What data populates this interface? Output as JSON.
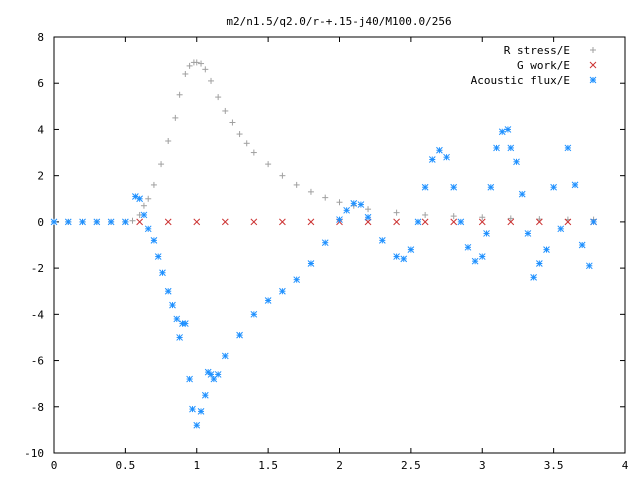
{
  "chart_data": {
    "type": "scatter",
    "title": "m2/n1.5/q2.0/r-+.15-j40/M100.0/256",
    "xlabel": "",
    "ylabel": "",
    "xlim": [
      0,
      4
    ],
    "ylim": [
      -10,
      8
    ],
    "xticks": [
      "0",
      "0.5",
      "1",
      "1.5",
      "2",
      "2.5",
      "3",
      "3.5",
      "4"
    ],
    "yticks": [
      "8",
      "6",
      "4",
      "2",
      "0",
      "-2",
      "-4",
      "-6",
      "-8",
      "-10"
    ],
    "grid": false,
    "legend_position": "top-right",
    "series": [
      {
        "name": "R stress/E",
        "marker": "plus",
        "color": "#a0a0a0",
        "x": [
          0.0,
          0.1,
          0.2,
          0.3,
          0.4,
          0.5,
          0.55,
          0.6,
          0.63,
          0.66,
          0.7,
          0.75,
          0.8,
          0.85,
          0.88,
          0.92,
          0.95,
          0.98,
          1.0,
          1.03,
          1.06,
          1.1,
          1.15,
          1.2,
          1.25,
          1.3,
          1.35,
          1.4,
          1.5,
          1.6,
          1.7,
          1.8,
          1.9,
          2.0,
          2.1,
          2.2,
          2.4,
          2.6,
          2.8,
          3.0,
          3.2,
          3.4,
          3.6,
          3.78
        ],
        "y": [
          0,
          0,
          0,
          0,
          0,
          0,
          0.05,
          0.3,
          0.7,
          1.0,
          1.6,
          2.5,
          3.5,
          4.5,
          5.5,
          6.4,
          6.75,
          6.9,
          6.9,
          6.85,
          6.6,
          6.1,
          5.4,
          4.8,
          4.3,
          3.8,
          3.4,
          3.0,
          2.5,
          2.0,
          1.6,
          1.3,
          1.05,
          0.85,
          0.7,
          0.55,
          0.4,
          0.3,
          0.25,
          0.2,
          0.15,
          0.12,
          0.1,
          0.1
        ]
      },
      {
        "name": "G work/E",
        "marker": "cross",
        "color": "#cc3333",
        "x": [
          0.6,
          0.8,
          1.0,
          1.2,
          1.4,
          1.6,
          1.8,
          2.0,
          2.2,
          2.4,
          2.6,
          2.8,
          3.0,
          3.2,
          3.4,
          3.6,
          3.78
        ],
        "y": [
          0,
          0,
          0,
          0,
          0,
          0,
          0,
          0,
          0,
          0,
          0,
          0,
          0,
          0,
          0,
          0,
          0
        ]
      },
      {
        "name": "Acoustic flux/E",
        "marker": "star",
        "color": "#1e90ff",
        "x": [
          0.0,
          0.1,
          0.2,
          0.3,
          0.4,
          0.5,
          0.57,
          0.6,
          0.63,
          0.66,
          0.7,
          0.73,
          0.76,
          0.8,
          0.83,
          0.86,
          0.88,
          0.9,
          0.92,
          0.95,
          0.97,
          1.0,
          1.03,
          1.06,
          1.08,
          1.1,
          1.12,
          1.15,
          1.2,
          1.3,
          1.4,
          1.5,
          1.6,
          1.7,
          1.8,
          1.9,
          2.0,
          2.05,
          2.1,
          2.15,
          2.2,
          2.3,
          2.4,
          2.45,
          2.5,
          2.55,
          2.6,
          2.65,
          2.7,
          2.75,
          2.8,
          2.85,
          2.9,
          2.95,
          3.0,
          3.03,
          3.06,
          3.1,
          3.14,
          3.18,
          3.2,
          3.24,
          3.28,
          3.32,
          3.36,
          3.4,
          3.45,
          3.5,
          3.55,
          3.6,
          3.65,
          3.7,
          3.75,
          3.78
        ],
        "y": [
          0,
          0,
          0,
          0,
          0,
          0,
          1.1,
          1.0,
          0.3,
          -0.3,
          -0.8,
          -1.5,
          -2.2,
          -3.0,
          -3.6,
          -4.2,
          -5.0,
          -4.4,
          -4.4,
          -6.8,
          -8.1,
          -8.8,
          -8.2,
          -7.5,
          -6.5,
          -6.6,
          -6.8,
          -6.6,
          -5.8,
          -4.9,
          -4.0,
          -3.4,
          -3.0,
          -2.5,
          -1.8,
          -0.9,
          0.1,
          0.5,
          0.8,
          0.75,
          0.2,
          -0.8,
          -1.5,
          -1.6,
          -1.2,
          0.0,
          1.5,
          2.7,
          3.1,
          2.8,
          1.5,
          0.0,
          -1.1,
          -1.7,
          -1.5,
          -0.5,
          1.5,
          3.2,
          3.9,
          4.0,
          3.2,
          2.6,
          1.2,
          -0.5,
          -2.4,
          -1.8,
          -1.2,
          1.5,
          -0.3,
          3.2,
          1.6,
          -1.0,
          -1.9,
          0.0
        ]
      }
    ]
  }
}
